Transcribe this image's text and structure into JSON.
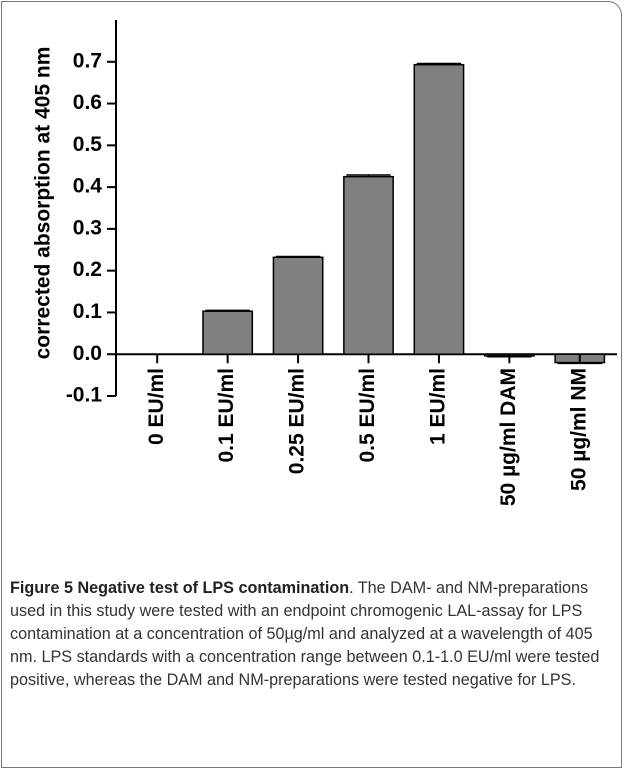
{
  "chart_data": {
    "type": "bar",
    "y_label": "corrected absorption at 405 nm",
    "categories": [
      "0 EU/ml",
      "0.1 EU/ml",
      "0.25 EU/ml",
      "0.5 EU/ml",
      "1 EU/ml",
      "50 µg/ml DAM",
      "50 µg/ml NM"
    ],
    "values": [
      0,
      0.103,
      0.232,
      0.425,
      0.693,
      -0.004,
      -0.02
    ],
    "errors": [
      0,
      0.002,
      0.002,
      0.004,
      0.003,
      0.002,
      0.002
    ],
    "color": "#808080",
    "ylim": [
      -0.1,
      0.8
    ],
    "yticks": [
      -0.1,
      {
        "value": 0,
        "label": "0.0"
      },
      0.1,
      0.2,
      0.3,
      0.4,
      0.5,
      0.6,
      0.7
    ],
    "caption_title": "Figure 5 Negative test of LPS contamination",
    "caption_text": ". The DAM- and NM-preparations used in this study were tested with an endpoint chromogenic LAL-assay for LPS contamination at a concentration of 50µg/ml and analyzed at a wavelength of 405 nm. LPS standards with a concentration range between 0.1-1.0 EU/ml were tested positive, whereas the DAM and NM-preparations were tested negative for LPS."
  }
}
